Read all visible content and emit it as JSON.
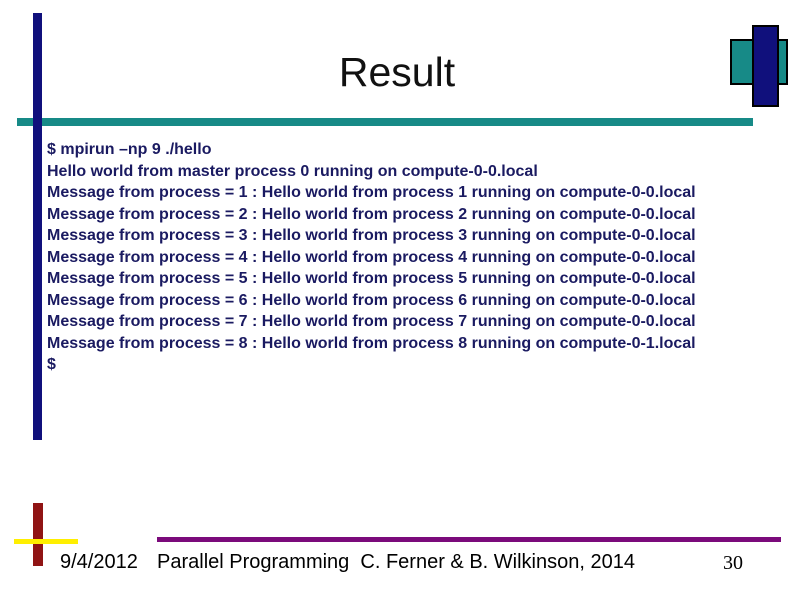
{
  "slide": {
    "title": "Result",
    "console_lines": [
      "$ mpirun –np 9 ./hello",
      "Hello world from master process 0 running on compute-0-0.local",
      "Message from process = 1 : Hello world from process 1 running on compute-0-0.local",
      "Message from process = 2 : Hello world from process 2 running on compute-0-0.local",
      "Message from process = 3 : Hello world from process 3 running on compute-0-0.local",
      "Message from process = 4 : Hello world from process 4 running on compute-0-0.local",
      "Message from process = 5 : Hello world from process 5 running on compute-0-0.local",
      "Message from process = 6 : Hello world from process 6 running on compute-0-0.local",
      "Message from process = 7 : Hello world from process 7 running on compute-0-0.local",
      "Message from process = 8 : Hello world from process 8 running on compute-0-1.local",
      "$"
    ],
    "footer": {
      "date": "9/4/2012",
      "credit": "Parallel Programming  C. Ferner & B. Wilkinson, 2014",
      "page_number": "30"
    },
    "colors": {
      "navy": "#10107c",
      "teal": "#178a87",
      "console_text": "#1a1a61",
      "purple": "#7b0a7b",
      "dark_red": "#901414",
      "yellow": "#ffef00",
      "title_color": "#111111"
    }
  }
}
